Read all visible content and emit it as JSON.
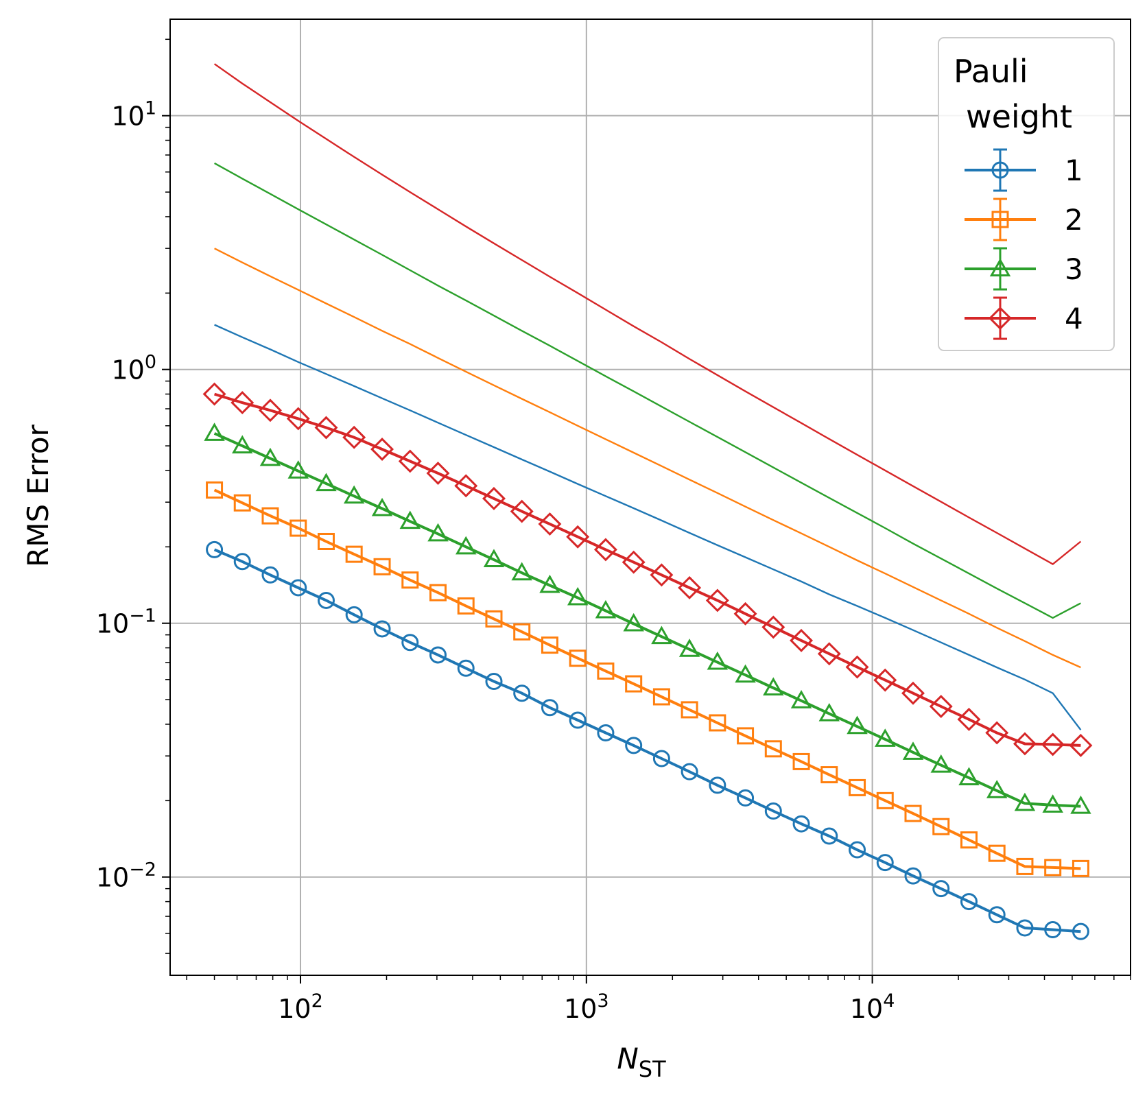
{
  "chart_data": {
    "type": "line",
    "title": "",
    "xlabel": {
      "main": "N",
      "subscript": "ST"
    },
    "ylabel": "RMS Error",
    "xscale": "log",
    "yscale": "log",
    "xlim": [
      35,
      80000
    ],
    "ylim": [
      0.0041,
      24
    ],
    "grid": true,
    "legend_location": "top-right",
    "legend_title": [
      "Pauli",
      "weight"
    ],
    "x_ticks": [
      {
        "base": "10",
        "exp": "2",
        "value": 100
      },
      {
        "base": "10",
        "exp": "3",
        "value": 1000
      },
      {
        "base": "10",
        "exp": "4",
        "value": 10000
      }
    ],
    "y_ticks": [
      {
        "base": "10",
        "exp": "−2",
        "value": 0.01
      },
      {
        "base": "10",
        "exp": "−1",
        "value": 0.1
      },
      {
        "base": "10",
        "exp": "0",
        "value": 1
      },
      {
        "base": "10",
        "exp": "1",
        "value": 10
      }
    ],
    "x": [
      50,
      62.6,
      78.4,
      98.2,
      123,
      154,
      193,
      241.7,
      302.7,
      379.1,
      474.8,
      594.6,
      744.7,
      932.6,
      1168,
      1463,
      1832,
      2294,
      2873,
      3598,
      4506,
      5644,
      7068,
      8852,
      11086,
      13884,
      17389,
      21777,
      27273,
      34157,
      42777,
      53575
    ],
    "series": [
      {
        "name": "1",
        "marker": "circle",
        "color": "#1f77b4",
        "values": [
          0.195,
          0.175,
          0.155,
          0.138,
          0.123,
          0.108,
          0.095,
          0.084,
          0.075,
          0.0665,
          0.059,
          0.053,
          0.0465,
          0.0415,
          0.037,
          0.033,
          0.0293,
          0.026,
          0.023,
          0.0205,
          0.0182,
          0.0162,
          0.0145,
          0.0128,
          0.0114,
          0.0101,
          0.009,
          0.008,
          0.0071,
          0.0063,
          0.0062,
          0.0061
        ],
        "bound": [
          1.5,
          1.34,
          1.2,
          1.07,
          0.96,
          0.86,
          0.77,
          0.69,
          0.617,
          0.552,
          0.494,
          0.442,
          0.396,
          0.354,
          0.317,
          0.284,
          0.254,
          0.227,
          0.203,
          0.182,
          0.163,
          0.146,
          0.13,
          0.117,
          0.105,
          0.094,
          0.084,
          0.075,
          0.067,
          0.06,
          0.053,
          0.038
        ]
      },
      {
        "name": "2",
        "marker": "square",
        "color": "#ff7f0e",
        "values": [
          0.335,
          0.298,
          0.265,
          0.237,
          0.21,
          0.187,
          0.167,
          0.148,
          0.132,
          0.117,
          0.104,
          0.0925,
          0.082,
          0.0728,
          0.0648,
          0.0577,
          0.0513,
          0.0456,
          0.0405,
          0.036,
          0.032,
          0.0285,
          0.0253,
          0.0225,
          0.02,
          0.0178,
          0.0158,
          0.014,
          0.0124,
          0.011,
          0.0109,
          0.0108
        ],
        "bound": [
          3.0,
          2.64,
          2.33,
          2.06,
          1.82,
          1.61,
          1.42,
          1.26,
          1.11,
          0.98,
          0.866,
          0.766,
          0.678,
          0.6,
          0.531,
          0.47,
          0.416,
          0.368,
          0.326,
          0.288,
          0.255,
          0.226,
          0.2,
          0.177,
          0.157,
          0.139,
          0.123,
          0.109,
          0.096,
          0.085,
          0.075,
          0.067
        ]
      },
      {
        "name": "3",
        "marker": "triangle",
        "color": "#2ca02c",
        "values": [
          0.56,
          0.5,
          0.446,
          0.398,
          0.355,
          0.317,
          0.283,
          0.252,
          0.225,
          0.2,
          0.178,
          0.158,
          0.141,
          0.126,
          0.112,
          0.0995,
          0.0886,
          0.0789,
          0.0702,
          0.0625,
          0.0556,
          0.0495,
          0.044,
          0.0392,
          0.0349,
          0.031,
          0.0276,
          0.0246,
          0.0219,
          0.0195,
          0.0192,
          0.019
        ],
        "bound": [
          6.5,
          5.65,
          4.92,
          4.28,
          3.73,
          3.25,
          2.83,
          2.46,
          2.14,
          1.87,
          1.63,
          1.42,
          1.24,
          1.08,
          0.94,
          0.82,
          0.714,
          0.622,
          0.542,
          0.472,
          0.411,
          0.358,
          0.312,
          0.272,
          0.237,
          0.206,
          0.18,
          0.157,
          0.137,
          0.12,
          0.105,
          0.12
        ]
      },
      {
        "name": "4",
        "marker": "diamond",
        "color": "#d62728",
        "values": [
          0.8,
          0.74,
          0.69,
          0.64,
          0.59,
          0.54,
          0.485,
          0.435,
          0.39,
          0.348,
          0.31,
          0.276,
          0.246,
          0.219,
          0.195,
          0.174,
          0.155,
          0.138,
          0.123,
          0.109,
          0.0965,
          0.0855,
          0.0758,
          0.0672,
          0.0597,
          0.053,
          0.047,
          0.0418,
          0.037,
          0.0335,
          0.0333,
          0.033
        ],
        "bound": [
          16,
          13.4,
          11.3,
          9.55,
          8.1,
          6.88,
          5.86,
          5.0,
          4.28,
          3.66,
          3.14,
          2.7,
          2.32,
          2.0,
          1.72,
          1.48,
          1.28,
          1.1,
          0.95,
          0.82,
          0.71,
          0.615,
          0.532,
          0.461,
          0.4,
          0.347,
          0.301,
          0.261,
          0.227,
          0.197,
          0.171,
          0.21
        ]
      }
    ]
  }
}
